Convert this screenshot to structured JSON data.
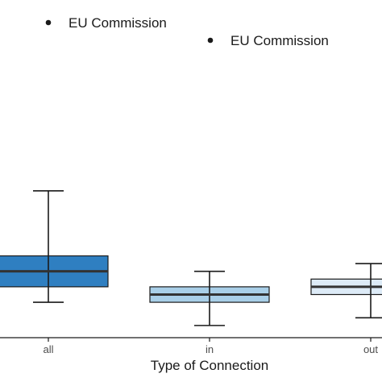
{
  "chart_data": {
    "type": "boxplot",
    "xlabel": "Type of Connection",
    "categories": [
      "all",
      "in",
      "out"
    ],
    "boxes": [
      {
        "category": "all",
        "whisker_low": 0.26,
        "q1": 0.36,
        "median": 0.46,
        "q3": 0.56,
        "whisker_high": 0.98,
        "fill": "#2f7fc1"
      },
      {
        "category": "in",
        "whisker_low": 0.11,
        "q1": 0.26,
        "median": 0.31,
        "q3": 0.36,
        "whisker_high": 0.46,
        "fill": "#a9cfe8"
      },
      {
        "category": "out",
        "whisker_low": 0.16,
        "q1": 0.31,
        "median": 0.36,
        "q3": 0.41,
        "whisker_high": 0.51,
        "fill": "#ddebf7"
      }
    ],
    "legend": [
      {
        "label": "EU Commission",
        "marker": "point"
      },
      {
        "label": "EU Commission",
        "marker": "point"
      }
    ],
    "grid": false,
    "colors": {
      "axis": "#1a1a1a",
      "box_edge": "#1a1a1a",
      "median": "#333333"
    }
  }
}
